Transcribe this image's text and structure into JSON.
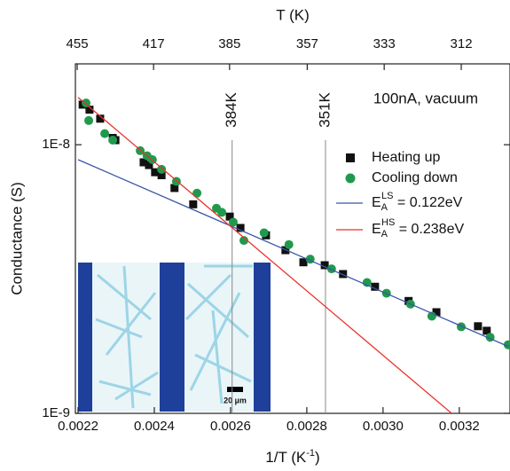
{
  "chart_data": {
    "type": "scatter",
    "xlabel": "1/T (K",
    "xlabel_sup": "-1",
    "xlabel_end": ")",
    "ylabel": "Conductance (S)",
    "x2label": "T (K)",
    "annotation": "100nA, vacuum",
    "inset_scale_label": "20 µm",
    "xlim": [
      0.002193,
      0.003333
    ],
    "xticks": [
      0.0022,
      0.0024,
      0.0026,
      0.0028,
      {
        "value": 0.003,
        "label": "0.0030"
      },
      0.0032
    ],
    "x2scale": "reciprocal",
    "x2ticks": [
      455,
      417,
      385,
      357,
      333,
      312
    ],
    "ylim": [
      1e-09,
      2e-08
    ],
    "yscale": "log",
    "yticks": [
      {
        "value": 1e-09,
        "label": "1E-9"
      },
      {
        "value": 1e-08,
        "label": "1E-8"
      }
    ],
    "vlines": [
      {
        "value": 384,
        "label": "384K"
      },
      {
        "value": 351,
        "label": "351K"
      }
    ],
    "series": [
      {
        "name": "Heating up",
        "color": "#111111",
        "marker": "square",
        "x": [
          0.002212,
          0.00223,
          0.002258,
          0.002291,
          0.002298,
          0.002372,
          0.002386,
          0.002402,
          0.002419,
          0.002453,
          0.002502,
          0.002598,
          0.002626,
          0.002693,
          0.002744,
          0.002791,
          0.002847,
          0.002895,
          0.002979,
          0.003067,
          0.00314,
          0.003249,
          0.003272
        ],
        "values": [
          1.41e-08,
          1.35e-08,
          1.25e-08,
          1.06e-08,
          1.04e-08,
          8.6e-09,
          8.4e-09,
          7.9e-09,
          7.7e-09,
          6.9e-09,
          6e-09,
          5.4e-09,
          4.9e-09,
          4.6e-09,
          4.05e-09,
          3.65e-09,
          3.56e-09,
          3.3e-09,
          2.96e-09,
          2.62e-09,
          2.38e-09,
          2.11e-09,
          2.03e-09
        ]
      },
      {
        "name": "Cooling down",
        "color": "#1f9a4c",
        "marker": "circle",
        "x": [
          0.002221,
          0.002228,
          0.00227,
          0.002291,
          0.002363,
          0.002381,
          0.002395,
          0.002419,
          0.002458,
          0.002512,
          0.002563,
          0.002577,
          0.002607,
          0.002635,
          0.002688,
          0.002753,
          0.002809,
          0.002865,
          0.002958,
          0.003009,
          0.003072,
          0.003128,
          0.003205,
          0.003281,
          0.003328
        ],
        "values": [
          1.43e-08,
          1.23e-08,
          1.1e-08,
          1.04e-08,
          9.5e-09,
          9.1e-09,
          8.8e-09,
          8.1e-09,
          7.3e-09,
          6.6e-09,
          5.8e-09,
          5.6e-09,
          5.15e-09,
          4.4e-09,
          4.7e-09,
          4.25e-09,
          3.75e-09,
          3.45e-09,
          3.07e-09,
          2.8e-09,
          2.55e-09,
          2.3e-09,
          2.1e-09,
          1.92e-09,
          1.8e-09
        ]
      },
      {
        "name": "E",
        "name_sub": "A",
        "name_sup": "LS",
        "name_rest": " = 0.122eV",
        "color": "#3a56a8",
        "marker": "line",
        "x": [
          0.0022,
          0.00333
        ],
        "values": [
          8.8e-09,
          1.77e-09
        ]
      },
      {
        "name": "E",
        "name_sub": "A",
        "name_sup": "HS",
        "name_rest": " = 0.238eV",
        "color": "#e8322a",
        "marker": "line",
        "x": [
          0.0022,
          0.00318
        ],
        "values": [
          1.5e-08,
          1e-09
        ]
      }
    ]
  }
}
